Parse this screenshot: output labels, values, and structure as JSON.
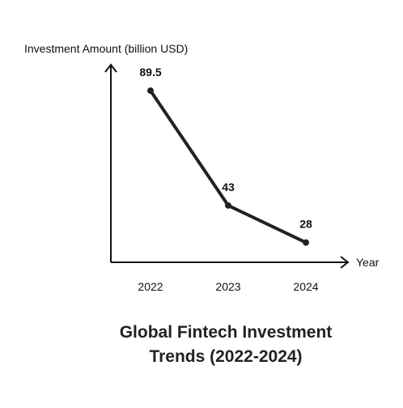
{
  "chart_data": {
    "type": "line",
    "title_lines": [
      "Global Fintech Investment",
      "Trends (2022-2024)"
    ],
    "ylabel": "Investment Amount (billion USD)",
    "xlabel": "Year",
    "categories": [
      "2022",
      "2023",
      "2024"
    ],
    "series": [
      {
        "values": [
          89.5,
          43,
          28
        ],
        "labels": [
          "89.5",
          "43",
          "28"
        ]
      }
    ],
    "ylim": [
      20,
      100
    ],
    "grid": false,
    "colors": {
      "line": "#222222",
      "axis": "#111111"
    }
  }
}
